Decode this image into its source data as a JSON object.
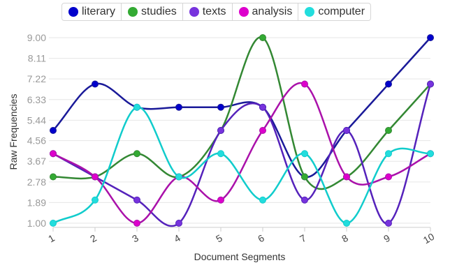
{
  "chart_data": {
    "type": "line",
    "x": [
      1,
      2,
      3,
      4,
      5,
      6,
      7,
      8,
      9,
      10
    ],
    "xlabel": "Document Segments",
    "ylabel": "Raw Frequencies",
    "yticks": [
      "1.00",
      "1.89",
      "2.78",
      "3.67",
      "4.56",
      "5.44",
      "6.33",
      "7.22",
      "8.11",
      "9.00"
    ],
    "ylim": [
      1,
      9
    ],
    "grid": "horizontal",
    "legend_position": "top",
    "series": [
      {
        "name": "literary",
        "color": "#0000cc",
        "line_color": "#1a1a99",
        "values": [
          5,
          7,
          6,
          6,
          6,
          6,
          3,
          5,
          7,
          9
        ]
      },
      {
        "name": "studies",
        "color": "#33aa33",
        "line_color": "#338833",
        "values": [
          3,
          3,
          4,
          3,
          5,
          9,
          3,
          3,
          5,
          7
        ]
      },
      {
        "name": "texts",
        "color": "#7733dd",
        "line_color": "#5522bb",
        "values": [
          4,
          3,
          2,
          1,
          5,
          6,
          2,
          5,
          1,
          7
        ]
      },
      {
        "name": "analysis",
        "color": "#dd00cc",
        "line_color": "#aa11aa",
        "values": [
          4,
          3,
          1,
          3,
          2,
          5,
          7,
          3,
          3,
          4
        ]
      },
      {
        "name": "computer",
        "color": "#22dddd",
        "line_color": "#11cccc",
        "values": [
          1,
          2,
          6,
          3,
          4,
          2,
          4,
          1,
          4,
          4
        ]
      }
    ]
  }
}
